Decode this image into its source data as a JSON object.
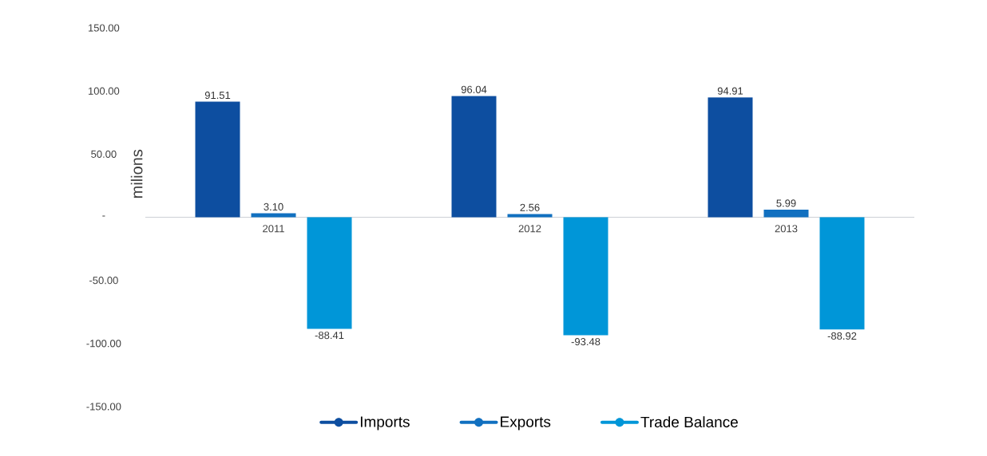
{
  "chart_data": {
    "type": "bar",
    "ylabel": "milions",
    "categories": [
      "2011",
      "2012",
      "2013"
    ],
    "series": [
      {
        "name": "Imports",
        "color": "#0d4ea0",
        "values": [
          91.51,
          96.04,
          94.91
        ],
        "value_labels": [
          "91.51",
          "96.04",
          "94.91"
        ]
      },
      {
        "name": "Exports",
        "color": "#1170c0",
        "values": [
          3.1,
          2.56,
          5.99
        ],
        "value_labels": [
          "3.10",
          "2.56",
          "5.99"
        ]
      },
      {
        "name": "Trade Balance",
        "color": "#0096d8",
        "values": [
          -88.41,
          -93.48,
          -88.92
        ],
        "value_labels": [
          "-88.41",
          "-93.48",
          "-88.92"
        ]
      }
    ],
    "ylim": [
      -150,
      150
    ],
    "yticks": [
      {
        "value": -150,
        "label": "-150.00"
      },
      {
        "value": -100,
        "label": "-100.00"
      },
      {
        "value": -50,
        "label": "-50.00"
      },
      {
        "value": 0,
        "label": "-"
      },
      {
        "value": 50,
        "label": "50.00"
      },
      {
        "value": 100,
        "label": "100.00"
      },
      {
        "value": 150,
        "label": "150.00"
      }
    ],
    "legend": "bottom",
    "grid": false
  }
}
